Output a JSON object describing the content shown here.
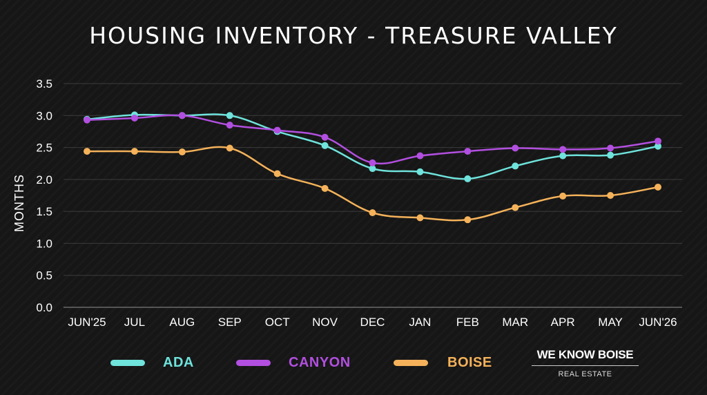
{
  "chart_data": {
    "type": "line",
    "title": "HOUSING INVENTORY - TREASURE VALLEY",
    "xlabel": "",
    "ylabel": "MONTHS",
    "ylim": [
      0,
      3.5
    ],
    "yticks": [
      "0.0",
      "0.5",
      "1.0",
      "1.5",
      "2.0",
      "2.5",
      "3.0",
      "3.5"
    ],
    "grid": true,
    "legend_position": "bottom",
    "categories": [
      "JUN'25",
      "JUL",
      "AUG",
      "SEP",
      "OCT",
      "NOV",
      "DEC",
      "JAN",
      "FEB",
      "MAR",
      "APR",
      "MAY",
      "JUN'26"
    ],
    "series": [
      {
        "name": "ADA",
        "color": "#6fe3dc",
        "values": [
          2.94,
          3.01,
          3.0,
          3.0,
          2.75,
          2.53,
          2.17,
          2.12,
          2.01,
          2.21,
          2.37,
          2.38,
          2.52
        ]
      },
      {
        "name": "CANYON",
        "color": "#b24fe0",
        "values": [
          2.93,
          2.96,
          3.0,
          2.85,
          2.77,
          2.66,
          2.26,
          2.37,
          2.44,
          2.49,
          2.47,
          2.49,
          2.6
        ]
      },
      {
        "name": "BOISE",
        "color": "#f5b25a",
        "values": [
          2.44,
          2.44,
          2.43,
          2.49,
          2.09,
          1.86,
          1.48,
          1.4,
          1.37,
          1.56,
          1.74,
          1.75,
          1.88
        ]
      }
    ]
  },
  "brand": {
    "name": "WE KNOW BOISE",
    "tagline": "REAL ESTATE"
  }
}
